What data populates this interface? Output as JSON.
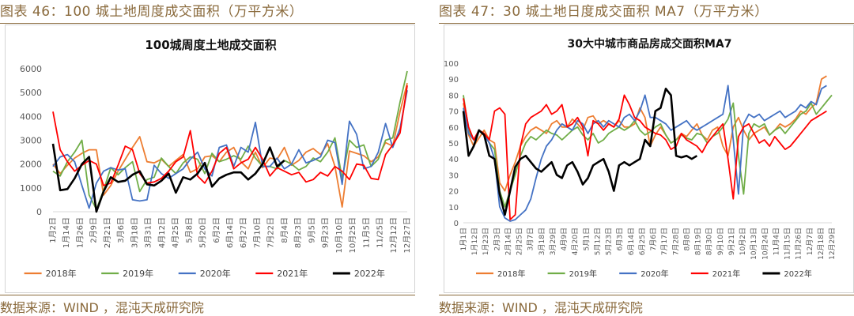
{
  "panels": [
    {
      "caption": "图表 46：100 城土地周度成交面积（万平方米）",
      "source": "数据来源：WIND ，混沌天成研究院"
    },
    {
      "caption": "图表 47：30 城土地日度成交面积 MA7（万平方米）",
      "source": "数据来源：WIND ，混沌天成研究院"
    }
  ],
  "chart_data": [
    {
      "type": "line",
      "title": "100城周度土地成交面积",
      "ylim": [
        0,
        6000
      ],
      "yticks": [
        0,
        1000,
        2000,
        3000,
        4000,
        5000,
        6000
      ],
      "grid": false,
      "legend_position": "bottom",
      "x_tick_labels": [
        "1月2日",
        "1月14日",
        "1月26日",
        "2月9日",
        "2月21日",
        "3月6日",
        "3月18日",
        "3月31日",
        "4月12日",
        "4月25日",
        "5月8日",
        "5月20日",
        "6月2日",
        "6月14日",
        "6月27日",
        "7月10日",
        "7月22日",
        "8月4日",
        "8月23日",
        "9月5日",
        "9月23日",
        "10月10日",
        "10月25日",
        "11月5日",
        "11/25日",
        "12月12日",
        "12月27日"
      ],
      "series": [
        {
          "name": "2018年",
          "color": "#ed7d31",
          "values": [
            2000,
            1600,
            1950,
            2250,
            2450,
            2600,
            2600,
            700,
            1100,
            1700,
            2200,
            2700,
            3150,
            2100,
            2050,
            2200,
            1900,
            2150,
            2400,
            1650,
            1800,
            2300,
            2350,
            2100,
            2500,
            2700,
            2100,
            1800,
            2500,
            1850,
            2250,
            2200,
            2700,
            1950,
            2150,
            2500,
            2650,
            2400,
            2850,
            1900,
            200,
            2550,
            2450,
            2350,
            2100,
            2300,
            2900,
            2750,
            4200,
            5400
          ]
        },
        {
          "name": "2019年",
          "color": "#70ad47",
          "values": [
            1700,
            1500,
            2100,
            2500,
            3000,
            700,
            100,
            900,
            1850,
            1550,
            1850,
            2100,
            850,
            1350,
            1450,
            2250,
            1900,
            1600,
            2050,
            2300,
            2200,
            1600,
            2450,
            2100,
            2200,
            2350,
            2200,
            2750,
            2250,
            1900,
            1900,
            1800,
            2150,
            2000,
            1750,
            1900,
            2250,
            2100,
            2500,
            3100,
            1400,
            3000,
            2700,
            2800,
            1900,
            2200,
            3000,
            3100,
            4600,
            5900
          ]
        },
        {
          "name": "2020年",
          "color": "#4472c4",
          "values": [
            1900,
            2300,
            2400,
            2100,
            1100,
            150,
            1200,
            1700,
            1850,
            1750,
            1800,
            500,
            450,
            500,
            1950,
            1600,
            1400,
            1600,
            1800,
            2200,
            2500,
            1800,
            1500,
            2700,
            2800,
            1900,
            2700,
            2500,
            3750,
            1900,
            1900,
            2250,
            1800,
            2000,
            2600,
            2050,
            2150,
            2300,
            3000,
            2900,
            1150,
            3800,
            3250,
            1800,
            1900,
            2500,
            3700,
            2700,
            3500,
            5100
          ]
        },
        {
          "name": "2021年",
          "color": "#ff0000",
          "values": [
            4200,
            2600,
            2100,
            1700,
            1950,
            2150,
            2000,
            1100,
            1200,
            1950,
            2750,
            2600,
            1600,
            1200,
            1250,
            1400,
            1700,
            2100,
            2300,
            3400,
            1500,
            1200,
            1700,
            2450,
            2700,
            1800,
            2050,
            2200,
            2700,
            2200,
            1500,
            1850,
            1700,
            1550,
            1650,
            1250,
            1350,
            1650,
            1500,
            1900,
            1700,
            1350,
            2000,
            1950,
            1400,
            1350,
            2400,
            2800,
            3300,
            5300
          ]
        },
        {
          "name": "2022年",
          "color": "#000000",
          "values": [
            2850,
            900,
            950,
            1400,
            2000,
            2300,
            0,
            850,
            1450,
            1250,
            1300,
            1550,
            1700,
            1150,
            1100,
            1300,
            1600,
            800,
            1450,
            1350,
            1600,
            2050,
            1050,
            1400,
            1550,
            1650,
            1650,
            1350,
            1600,
            2000,
            2700,
            1900,
            2150
          ]
        }
      ]
    },
    {
      "type": "line",
      "title": "30大中城市商品房成交面积MA7",
      "ylim": [
        0,
        100
      ],
      "yticks": [
        0,
        10,
        20,
        30,
        40,
        50,
        60,
        70,
        80,
        90,
        100
      ],
      "grid": false,
      "legend_position": "bottom",
      "x_tick_labels": [
        "1月1日",
        "1月12日",
        "1月23日",
        "2月3日",
        "2月14日",
        "2月25日",
        "3月7日",
        "3月18日",
        "3月29日",
        "4月9日",
        "4月20日",
        "5月1日",
        "5月12日",
        "5月23日",
        "6月3日",
        "6月14日",
        "6月25日",
        "7月6日",
        "7月17日",
        "7月28日",
        "8月8日",
        "8月19日",
        "8月30日",
        "9月10日",
        "9月21日",
        "10月2日",
        "10月13日",
        "10月24日",
        "11月4日",
        "11月15日",
        "11月26日",
        "12月7日",
        "12月18日",
        "12月29日"
      ],
      "series": [
        {
          "name": "2018年",
          "color": "#ed7d31",
          "values": [
            75,
            55,
            48,
            53,
            58,
            52,
            50,
            25,
            20,
            30,
            38,
            48,
            54,
            58,
            60,
            58,
            56,
            62,
            64,
            60,
            60,
            65,
            62,
            58,
            66,
            67,
            62,
            64,
            62,
            60,
            64,
            60,
            60,
            62,
            72,
            66,
            48,
            55,
            60,
            55,
            50,
            52,
            56,
            54,
            58,
            62,
            55,
            52,
            58,
            60,
            48,
            42,
            60,
            66,
            58,
            52,
            56,
            58,
            60,
            55,
            58,
            62,
            60,
            62,
            65,
            70,
            68,
            72,
            75,
            90,
            92
          ]
        },
        {
          "name": "2019年",
          "color": "#70ad47",
          "values": [
            80,
            58,
            52,
            58,
            55,
            50,
            46,
            20,
            10,
            20,
            30,
            42,
            50,
            54,
            52,
            55,
            58,
            56,
            55,
            52,
            55,
            58,
            60,
            55,
            52,
            56,
            50,
            52,
            56,
            58,
            60,
            58,
            60,
            64,
            58,
            55,
            57,
            60,
            62,
            55,
            50,
            52,
            55,
            53,
            52,
            56,
            55,
            50,
            54,
            56,
            60,
            65,
            75,
            42,
            18,
            56,
            62,
            60,
            62,
            55,
            58,
            60,
            56,
            60,
            64,
            68,
            70,
            75,
            68,
            72,
            76,
            80
          ]
        },
        {
          "name": "2020年",
          "color": "#4472c4",
          "values": [
            72,
            56,
            52,
            58,
            55,
            50,
            40,
            10,
            3,
            1,
            2,
            5,
            8,
            15,
            28,
            40,
            48,
            52,
            58,
            62,
            60,
            58,
            64,
            62,
            56,
            62,
            64,
            60,
            64,
            62,
            60,
            66,
            68,
            64,
            70,
            80,
            66,
            66,
            64,
            62,
            58,
            60,
            62,
            64,
            60,
            58,
            60,
            62,
            64,
            66,
            68,
            86,
            52,
            18,
            62,
            68,
            66,
            68,
            64,
            66,
            68,
            70,
            66,
            68,
            70,
            74,
            72,
            76,
            74,
            84,
            86
          ]
        },
        {
          "name": "2021年",
          "color": "#ff0000",
          "values": [
            78,
            60,
            52,
            58,
            56,
            52,
            70,
            72,
            68,
            2,
            5,
            48,
            62,
            66,
            68,
            70,
            74,
            68,
            70,
            74,
            60,
            62,
            66,
            60,
            42,
            64,
            62,
            58,
            62,
            60,
            65,
            80,
            74,
            66,
            64,
            60,
            58,
            56,
            55,
            52,
            46,
            48,
            56,
            52,
            50,
            48,
            44,
            50,
            54,
            58,
            62,
            40,
            15,
            54,
            60,
            62,
            56,
            50,
            52,
            48,
            54,
            50,
            46,
            48,
            52,
            56,
            60,
            64,
            66,
            68,
            70
          ]
        },
        {
          "name": "2022年",
          "color": "#000000",
          "values": [
            70,
            42,
            48,
            58,
            55,
            42,
            40,
            18,
            5,
            20,
            35,
            40,
            42,
            38,
            34,
            32,
            35,
            38,
            30,
            28,
            36,
            38,
            32,
            24,
            28,
            36,
            38,
            40,
            32,
            20,
            36,
            38,
            36,
            38,
            40,
            52,
            48,
            70,
            72,
            84,
            80,
            42,
            41,
            42,
            40,
            42
          ]
        }
      ]
    }
  ]
}
